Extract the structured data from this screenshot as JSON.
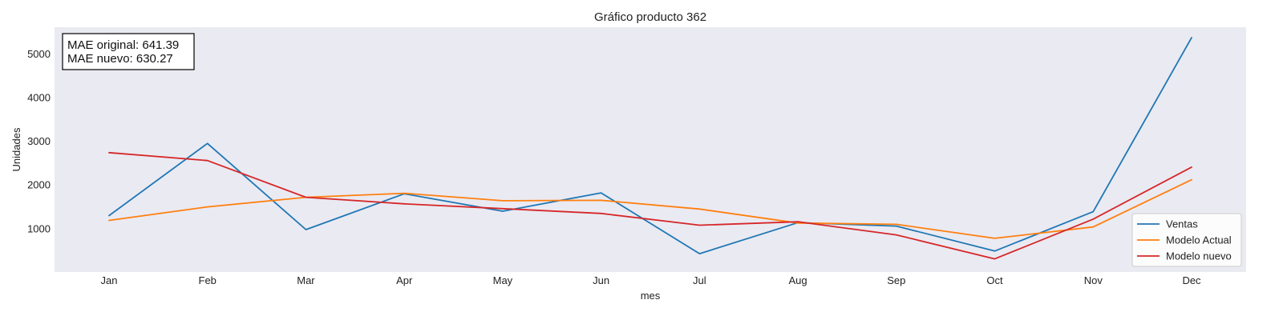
{
  "chart_data": {
    "type": "line",
    "title": "Gráfico producto 362",
    "xlabel": "mes",
    "ylabel": "Unidades",
    "categories": [
      "Jan",
      "Feb",
      "Mar",
      "Apr",
      "May",
      "Jun",
      "Jul",
      "Aug",
      "Sep",
      "Oct",
      "Nov",
      "Dec"
    ],
    "y_ticks": [
      "1000",
      "2000",
      "3000",
      "4000",
      "5000"
    ],
    "ylim": [
      0,
      5600
    ],
    "grid": false,
    "legend_position": "bottom-right",
    "annotation": {
      "line1": "MAE original: 641.39",
      "line2": "MAE nuevo: 630.27",
      "position": "top-left"
    },
    "series": [
      {
        "name": "Ventas",
        "color": "#1f77b4",
        "values": [
          1290,
          2940,
          970,
          1790,
          1390,
          1810,
          420,
          1130,
          1050,
          480,
          1380,
          5360
        ]
      },
      {
        "name": "Modelo Actual",
        "color": "#ff7f0e",
        "values": [
          1180,
          1490,
          1710,
          1800,
          1630,
          1640,
          1440,
          1120,
          1090,
          770,
          1030,
          2110
        ]
      },
      {
        "name": "Modelo nuevo",
        "color": "#d62728",
        "values": [
          2730,
          2550,
          1710,
          1560,
          1450,
          1340,
          1070,
          1150,
          850,
          300,
          1210,
          2400
        ]
      }
    ],
    "background_color": "#eaeaf2"
  }
}
